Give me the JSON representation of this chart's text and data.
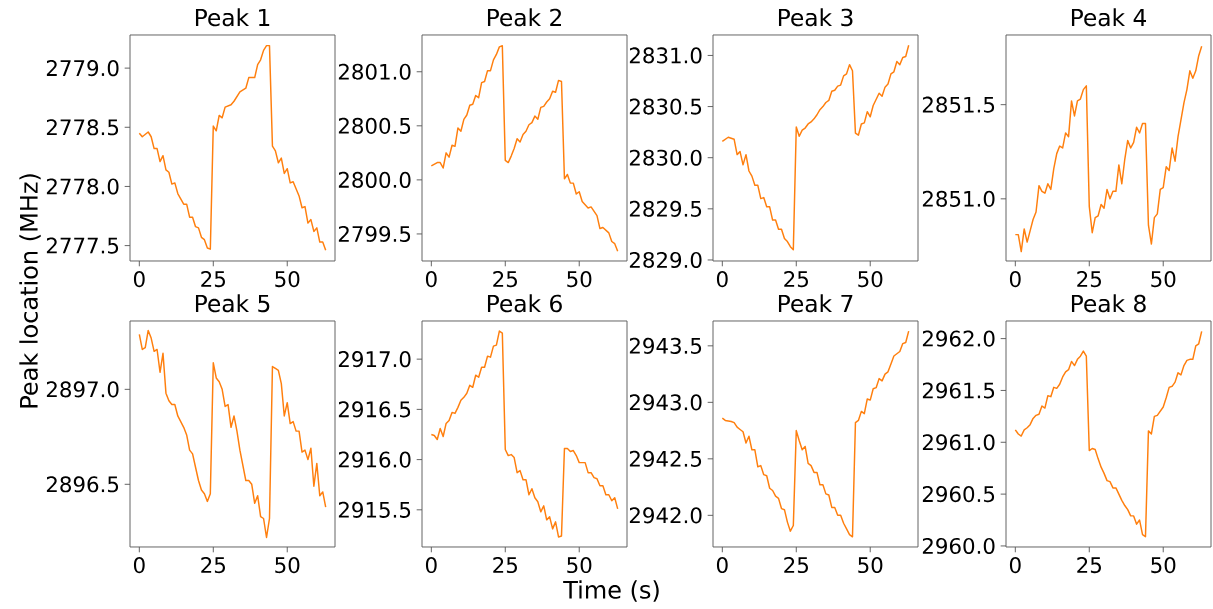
{
  "chart_data": [
    {
      "type": "line",
      "title": "Peak 1",
      "ylabel": "Peak location (MHz)",
      "color": "#ff7f0e",
      "xlim": [
        -3.15,
        66.15
      ],
      "ylim": [
        2777.37,
        2779.28
      ],
      "xticks": [
        0,
        25,
        50
      ],
      "yticks": [
        {
          "value": 2777.5,
          "label": "2777.5"
        },
        {
          "value": 2778,
          "label": "2778.0"
        },
        {
          "value": 2778.5,
          "label": "2778.5"
        },
        {
          "value": 2779,
          "label": "2779.0"
        }
      ],
      "x": [
        0,
        1,
        3,
        4,
        5,
        6,
        7,
        8,
        9,
        10,
        11,
        12,
        13,
        15,
        16,
        17,
        18,
        19,
        20,
        21,
        22,
        23,
        24,
        25,
        26,
        27,
        28,
        29,
        31,
        32,
        34,
        36,
        37,
        39,
        40,
        41,
        42,
        43,
        44,
        45,
        46,
        47,
        48,
        49,
        50,
        51,
        52,
        54,
        55,
        56,
        57,
        58,
        59,
        60,
        61,
        62,
        63
      ],
      "values": [
        2778.45,
        2778.42,
        2778.46,
        2778.42,
        2778.32,
        2778.32,
        2778.21,
        2778.26,
        2778.14,
        2778.12,
        2778.02,
        2778.03,
        2777.94,
        2777.85,
        2777.85,
        2777.74,
        2777.74,
        2777.66,
        2777.65,
        2777.57,
        2777.55,
        2777.48,
        2777.47,
        2778.51,
        2778.47,
        2778.6,
        2778.58,
        2778.67,
        2778.69,
        2778.72,
        2778.8,
        2778.83,
        2778.92,
        2778.92,
        2779.03,
        2779.07,
        2779.15,
        2779.19,
        2779.19,
        2778.34,
        2778.3,
        2778.2,
        2778.24,
        2778.11,
        2778.15,
        2778.03,
        2778.04,
        2777.92,
        2777.82,
        2777.83,
        2777.69,
        2777.72,
        2777.62,
        2777.65,
        2777.53,
        2777.53,
        2777.46
      ]
    },
    {
      "type": "line",
      "title": "Peak 2",
      "color": "#ff7f0e",
      "xlim": [
        -3.15,
        66.15
      ],
      "ylim": [
        2799.25,
        2801.34
      ],
      "xticks": [
        0,
        25,
        50
      ],
      "yticks": [
        {
          "value": 2799.5,
          "label": "2799.5"
        },
        {
          "value": 2800,
          "label": "2800.0"
        },
        {
          "value": 2800.5,
          "label": "2800.5"
        },
        {
          "value": 2801,
          "label": "2801.0"
        }
      ],
      "x": [
        0,
        2,
        3,
        4,
        5,
        6,
        7,
        8,
        9,
        10,
        11,
        12,
        13,
        14,
        15,
        16,
        17,
        18,
        19,
        20,
        21,
        22,
        23,
        24,
        25,
        26,
        27,
        28,
        29,
        30,
        31,
        32,
        33,
        34,
        35,
        36,
        37,
        38,
        39,
        40,
        41,
        42,
        43,
        44,
        45,
        46,
        47,
        48,
        49,
        50,
        51,
        53,
        54,
        56,
        57,
        58,
        60,
        61,
        62,
        63
      ],
      "values": [
        2800.13,
        2800.16,
        2800.16,
        2800.11,
        2800.25,
        2800.21,
        2800.32,
        2800.31,
        2800.48,
        2800.45,
        2800.56,
        2800.6,
        2800.69,
        2800.7,
        2800.78,
        2800.76,
        2800.9,
        2800.91,
        2801.01,
        2801.01,
        2801.11,
        2801.16,
        2801.23,
        2801.24,
        2800.18,
        2800.16,
        2800.22,
        2800.29,
        2800.38,
        2800.35,
        2800.42,
        2800.45,
        2800.51,
        2800.53,
        2800.59,
        2800.56,
        2800.67,
        2800.68,
        2800.72,
        2800.75,
        2800.82,
        2800.81,
        2800.92,
        2800.91,
        2800.01,
        2800.05,
        2799.97,
        2799.97,
        2799.87,
        2799.89,
        2799.8,
        2799.74,
        2799.75,
        2799.67,
        2799.55,
        2799.56,
        2799.51,
        2799.43,
        2799.41,
        2799.34
      ]
    },
    {
      "type": "line",
      "title": "Peak 3",
      "color": "#ff7f0e",
      "xlim": [
        -3.15,
        66.15
      ],
      "ylim": [
        2828.99,
        2831.2
      ],
      "xticks": [
        0,
        25,
        50
      ],
      "yticks": [
        {
          "value": 2829,
          "label": "2829.0"
        },
        {
          "value": 2829.5,
          "label": "2829.5"
        },
        {
          "value": 2830,
          "label": "2830.0"
        },
        {
          "value": 2830.5,
          "label": "2830.5"
        },
        {
          "value": 2831,
          "label": "2831.0"
        }
      ],
      "x": [
        0,
        2,
        4,
        5,
        6,
        7,
        8,
        9,
        10,
        11,
        12,
        13,
        14,
        15,
        16,
        17,
        18,
        19,
        20,
        21,
        22,
        23,
        24,
        25,
        26,
        27,
        28,
        29,
        30,
        31,
        32,
        33,
        34,
        35,
        36,
        37,
        38,
        39,
        40,
        41,
        42,
        43,
        44,
        45,
        46,
        47,
        48,
        49,
        50,
        51,
        52,
        53,
        54,
        55,
        56,
        57,
        58,
        59,
        60,
        61,
        62,
        63
      ],
      "values": [
        2830.16,
        2830.2,
        2830.18,
        2830.03,
        2830.06,
        2829.93,
        2830.03,
        2829.87,
        2829.82,
        2829.73,
        2829.73,
        2829.6,
        2829.61,
        2829.52,
        2829.52,
        2829.39,
        2829.39,
        2829.3,
        2829.3,
        2829.21,
        2829.18,
        2829.13,
        2829.1,
        2830.3,
        2830.21,
        2830.27,
        2830.29,
        2830.33,
        2830.35,
        2830.38,
        2830.42,
        2830.47,
        2830.5,
        2830.54,
        2830.56,
        2830.65,
        2830.66,
        2830.7,
        2830.71,
        2830.8,
        2830.82,
        2830.91,
        2830.85,
        2830.24,
        2830.22,
        2830.33,
        2830.34,
        2830.45,
        2830.4,
        2830.51,
        2830.57,
        2830.63,
        2830.6,
        2830.69,
        2830.72,
        2830.82,
        2830.84,
        2830.94,
        2830.91,
        2830.98,
        2830.99,
        2831.1
      ]
    },
    {
      "type": "line",
      "title": "Peak 4",
      "color": "#ff7f0e",
      "xlim": [
        -3.15,
        66.15
      ],
      "ylim": [
        2850.67,
        2851.87
      ],
      "xticks": [
        0,
        25,
        50
      ],
      "yticks": [
        {
          "value": 2851,
          "label": "2851.0"
        },
        {
          "value": 2851.5,
          "label": "2851.5"
        }
      ],
      "x": [
        0,
        1,
        2,
        3,
        4,
        5,
        6,
        7,
        8,
        9,
        10,
        11,
        12,
        13,
        14,
        15,
        16,
        17,
        18,
        19,
        20,
        21,
        22,
        23,
        24,
        25,
        26,
        27,
        28,
        29,
        30,
        31,
        32,
        33,
        34,
        35,
        36,
        37,
        38,
        39,
        40,
        41,
        42,
        43,
        44,
        45,
        46,
        47,
        48,
        49,
        50,
        51,
        52,
        53,
        54,
        55,
        56,
        57,
        58,
        59,
        60,
        61,
        62,
        63
      ],
      "values": [
        2850.81,
        2850.81,
        2850.72,
        2850.84,
        2850.77,
        2850.83,
        2850.89,
        2850.93,
        2851.07,
        2851.04,
        2851.03,
        2851.08,
        2851.05,
        2851.16,
        2851.24,
        2851.28,
        2851.27,
        2851.35,
        2851.33,
        2851.52,
        2851.44,
        2851.52,
        2851.53,
        2851.58,
        2851.6,
        2850.96,
        2850.82,
        2850.9,
        2850.91,
        2850.97,
        2850.95,
        2851.05,
        2851.0,
        2851.04,
        2851.04,
        2851.18,
        2851.08,
        2851.21,
        2851.31,
        2851.27,
        2851.3,
        2851.38,
        2851.35,
        2851.4,
        2851.4,
        2850.86,
        2850.76,
        2850.9,
        2850.92,
        2851.05,
        2851.06,
        2851.17,
        2851.15,
        2851.27,
        2851.2,
        2851.33,
        2851.42,
        2851.51,
        2851.58,
        2851.68,
        2851.64,
        2851.68,
        2851.76,
        2851.81
      ]
    },
    {
      "type": "line",
      "title": "Peak 5",
      "color": "#ff7f0e",
      "xlim": [
        -3.15,
        66.15
      ],
      "ylim": [
        2896.17,
        2897.36
      ],
      "xticks": [
        0,
        25,
        50
      ],
      "yticks": [
        {
          "value": 2896.5,
          "label": "2896.5"
        },
        {
          "value": 2897,
          "label": "2897.0"
        }
      ],
      "x": [
        0,
        1,
        2,
        3,
        4,
        5,
        6,
        7,
        8,
        9,
        10,
        11,
        12,
        13,
        14,
        15,
        16,
        17,
        18,
        19,
        20,
        21,
        22,
        23,
        24,
        25,
        26,
        27,
        28,
        29,
        30,
        31,
        32,
        33,
        34,
        35,
        36,
        37,
        38,
        39,
        40,
        41,
        42,
        43,
        44,
        45,
        46,
        47,
        48,
        49,
        50,
        51,
        52,
        53,
        54,
        55,
        56,
        57,
        58,
        59,
        60,
        61,
        62,
        63
      ],
      "values": [
        2897.29,
        2897.21,
        2897.22,
        2897.31,
        2897.27,
        2897.2,
        2897.21,
        2897.09,
        2897.19,
        2896.98,
        2896.94,
        2896.92,
        2896.92,
        2896.86,
        2896.83,
        2896.8,
        2896.76,
        2896.68,
        2896.66,
        2896.59,
        2896.52,
        2896.47,
        2896.45,
        2896.41,
        2896.45,
        2897.14,
        2897.06,
        2897.04,
        2897.0,
        2896.91,
        2896.92,
        2896.8,
        2896.86,
        2896.78,
        2896.68,
        2896.6,
        2896.52,
        2896.52,
        2896.5,
        2896.4,
        2896.44,
        2896.33,
        2896.32,
        2896.22,
        2896.32,
        2897.12,
        2897.11,
        2897.1,
        2897.03,
        2896.86,
        2896.93,
        2896.82,
        2896.83,
        2896.78,
        2896.78,
        2896.67,
        2896.68,
        2896.63,
        2896.69,
        2896.49,
        2896.61,
        2896.44,
        2896.46,
        2896.38
      ]
    },
    {
      "type": "line",
      "title": "Peak 6",
      "xlabel": "Time (s)",
      "color": "#ff7f0e",
      "xlim": [
        -3.15,
        66.15
      ],
      "ylim": [
        2915.13,
        2917.38
      ],
      "xticks": [
        0,
        25,
        50
      ],
      "yticks": [
        {
          "value": 2915.5,
          "label": "2915.5"
        },
        {
          "value": 2916,
          "label": "2916.0"
        },
        {
          "value": 2916.5,
          "label": "2916.5"
        },
        {
          "value": 2917,
          "label": "2917.0"
        }
      ],
      "x": [
        0,
        1,
        2,
        3,
        4,
        5,
        6,
        7,
        8,
        9,
        10,
        11,
        12,
        13,
        14,
        15,
        16,
        17,
        18,
        19,
        20,
        21,
        22,
        23,
        24,
        25,
        26,
        27,
        28,
        29,
        30,
        31,
        32,
        33,
        34,
        35,
        36,
        37,
        38,
        39,
        40,
        41,
        42,
        43,
        44,
        45,
        46,
        47,
        48,
        49,
        50,
        51,
        52,
        53,
        54,
        55,
        56,
        57,
        58,
        59,
        60,
        61,
        62,
        63
      ],
      "values": [
        2916.25,
        2916.24,
        2916.2,
        2916.31,
        2916.23,
        2916.36,
        2916.39,
        2916.47,
        2916.46,
        2916.52,
        2916.59,
        2916.62,
        2916.66,
        2916.74,
        2916.72,
        2916.84,
        2916.82,
        2916.92,
        2916.92,
        2917.03,
        2917.02,
        2917.13,
        2917.14,
        2917.28,
        2917.26,
        2916.1,
        2916.04,
        2916.05,
        2916.02,
        2915.87,
        2915.89,
        2915.8,
        2915.8,
        2915.65,
        2915.71,
        2915.62,
        2915.58,
        2915.48,
        2915.54,
        2915.4,
        2915.43,
        2915.31,
        2915.38,
        2915.23,
        2915.24,
        2916.11,
        2916.11,
        2916.08,
        2916.09,
        2916.04,
        2915.97,
        2915.97,
        2915.97,
        2915.87,
        2915.87,
        2915.82,
        2915.81,
        2915.74,
        2915.74,
        2915.65,
        2915.65,
        2915.59,
        2915.62,
        2915.51
      ]
    },
    {
      "type": "line",
      "title": "Peak 7",
      "color": "#ff7f0e",
      "xlim": [
        -3.15,
        66.15
      ],
      "ylim": [
        2941.72,
        2943.72
      ],
      "xticks": [
        0,
        25,
        50
      ],
      "yticks": [
        {
          "value": 2942,
          "label": "2942.0"
        },
        {
          "value": 2942.5,
          "label": "2942.5"
        },
        {
          "value": 2943,
          "label": "2943.0"
        },
        {
          "value": 2943.5,
          "label": "2943.5"
        }
      ],
      "x": [
        0,
        1,
        3,
        4,
        5,
        6,
        7,
        8,
        9,
        10,
        11,
        12,
        13,
        14,
        15,
        16,
        17,
        18,
        19,
        20,
        21,
        22,
        23,
        24,
        25,
        26,
        27,
        28,
        29,
        30,
        31,
        32,
        33,
        34,
        35,
        36,
        37,
        38,
        39,
        40,
        41,
        42,
        43,
        44,
        45,
        46,
        47,
        48,
        49,
        50,
        51,
        52,
        53,
        54,
        55,
        56,
        57,
        58,
        59,
        60,
        61,
        62,
        63
      ],
      "values": [
        2942.86,
        2942.84,
        2942.83,
        2942.82,
        2942.78,
        2942.76,
        2942.74,
        2942.64,
        2942.7,
        2942.58,
        2942.58,
        2942.43,
        2942.44,
        2942.36,
        2942.35,
        2942.24,
        2942.22,
        2942.17,
        2942.15,
        2942.06,
        2942.05,
        2941.94,
        2941.86,
        2941.91,
        2942.75,
        2942.66,
        2942.58,
        2942.61,
        2942.46,
        2942.44,
        2942.38,
        2942.38,
        2942.27,
        2942.27,
        2942.19,
        2942.18,
        2942.07,
        2942.07,
        2942.0,
        2942.0,
        2941.93,
        2941.88,
        2941.83,
        2941.81,
        2942.82,
        2942.84,
        2942.92,
        2942.9,
        2943.03,
        2943.02,
        2943.12,
        2943.13,
        2943.21,
        2943.19,
        2943.25,
        2943.27,
        2943.34,
        2943.41,
        2943.43,
        2943.45,
        2943.52,
        2943.53,
        2943.63
      ]
    },
    {
      "type": "line",
      "title": "Peak 8",
      "color": "#ff7f0e",
      "xlim": [
        -3.15,
        66.15
      ],
      "ylim": [
        2959.99,
        2962.17
      ],
      "xticks": [
        0,
        25,
        50
      ],
      "yticks": [
        {
          "value": 2960,
          "label": "2960.0"
        },
        {
          "value": 2960.5,
          "label": "2960.5"
        },
        {
          "value": 2961,
          "label": "2961.0"
        },
        {
          "value": 2961.5,
          "label": "2961.5"
        },
        {
          "value": 2962,
          "label": "2962.0"
        }
      ],
      "x": [
        0,
        1,
        2,
        3,
        4,
        5,
        6,
        7,
        8,
        9,
        10,
        11,
        12,
        13,
        14,
        15,
        16,
        17,
        18,
        19,
        20,
        21,
        22,
        23,
        24,
        25,
        26,
        27,
        28,
        29,
        30,
        31,
        32,
        33,
        34,
        35,
        36,
        37,
        38,
        39,
        40,
        41,
        42,
        43,
        44,
        45,
        46,
        47,
        48,
        49,
        50,
        51,
        52,
        53,
        54,
        55,
        56,
        57,
        58,
        59,
        60,
        61,
        62,
        63
      ],
      "values": [
        2961.12,
        2961.08,
        2961.06,
        2961.12,
        2961.14,
        2961.17,
        2961.23,
        2961.26,
        2961.27,
        2961.35,
        2961.33,
        2961.45,
        2961.44,
        2961.53,
        2961.52,
        2961.56,
        2961.63,
        2961.68,
        2961.7,
        2961.78,
        2961.74,
        2961.8,
        2961.83,
        2961.88,
        2961.83,
        2960.92,
        2960.94,
        2960.93,
        2960.84,
        2960.76,
        2960.7,
        2960.63,
        2960.62,
        2960.56,
        2960.56,
        2960.5,
        2960.44,
        2960.39,
        2960.35,
        2960.29,
        2960.29,
        2960.21,
        2960.25,
        2960.11,
        2960.09,
        2961.11,
        2961.08,
        2961.25,
        2961.26,
        2961.3,
        2961.34,
        2961.43,
        2961.53,
        2961.54,
        2961.58,
        2961.67,
        2961.65,
        2961.74,
        2961.79,
        2961.8,
        2961.8,
        2961.93,
        2961.95,
        2962.07
      ]
    }
  ]
}
